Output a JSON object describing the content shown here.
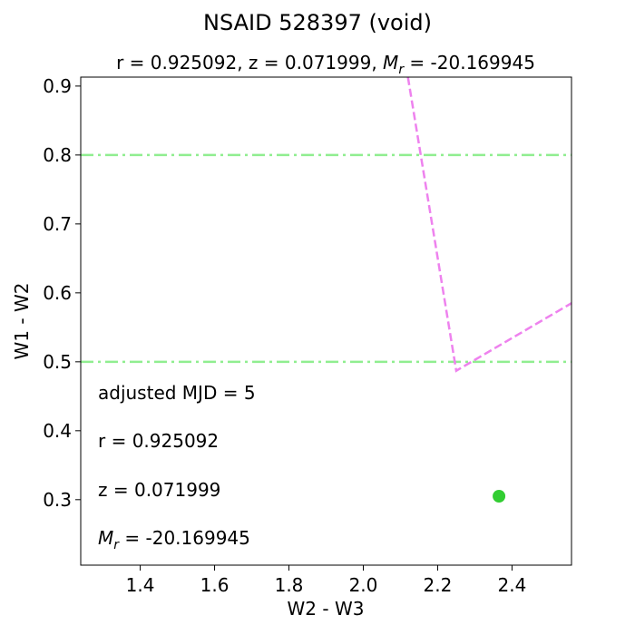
{
  "chart_data": {
    "type": "scatter",
    "title": "NSAID 528397 (void)",
    "subtitle": {
      "r_part": "r = 0.925092,  z = 0.071999,  ",
      "m_sym": "M",
      "m_sub": "r",
      "m_val": " = -20.169945"
    },
    "xlabel": "W2 - W3",
    "ylabel": "W1 - W2",
    "xlim": [
      1.24,
      2.56
    ],
    "ylim": [
      0.205,
      0.913
    ],
    "xticks": [
      1.4,
      1.6,
      1.8,
      2.0,
      2.2,
      2.4
    ],
    "xtick_labels": [
      "1.4",
      "1.6",
      "1.8",
      "2.0",
      "2.2",
      "2.4"
    ],
    "yticks": [
      0.3,
      0.4,
      0.5,
      0.6,
      0.7,
      0.8,
      0.9
    ],
    "ytick_labels": [
      "0.3",
      "0.4",
      "0.5",
      "0.6",
      "0.7",
      "0.8",
      "0.9"
    ],
    "hlines": [
      {
        "y": 0.8,
        "color": "#90ee90",
        "style": "dashdot"
      },
      {
        "y": 0.5,
        "color": "#90ee90",
        "style": "dashdot"
      }
    ],
    "boundary_line": {
      "color": "#ee82ee",
      "style": "dashed",
      "points": [
        [
          2.12,
          0.913
        ],
        [
          2.25,
          0.487
        ],
        [
          2.56,
          0.585
        ]
      ]
    },
    "points": [
      {
        "x": 2.365,
        "y": 0.305,
        "color": "#32cd32"
      }
    ],
    "annotations": {
      "mjd": "adjusted MJD = 5",
      "r": "r = 0.925092",
      "z": "z = 0.071999",
      "m_sym": "M",
      "m_sub": "r",
      "m_val": " = -20.169945"
    },
    "grid": false,
    "legend": "none"
  }
}
